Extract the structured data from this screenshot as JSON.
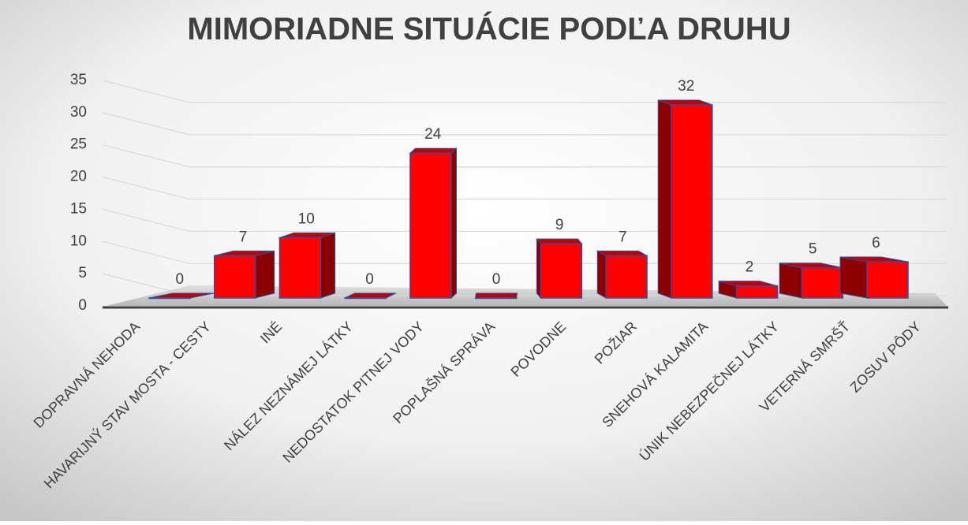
{
  "chart_data": {
    "type": "bar",
    "title": "MIMORIADNE SITUÁCIE PODĽA DRUHU",
    "categories": [
      "DOPRAVNÁ NEHODA",
      "HAVARIJNÝ STAV MOSTA - CESTY",
      "INÉ",
      "NÁLEZ NEZNÁMEJ LÁTKY",
      "NEDOSTATOK PITNEJ VODY",
      "POPLAŠNÁ SPRÁVA",
      "POVODNE",
      "POŽIAR",
      "SNEHOVÁ KALAMITA",
      "ÚNIK NEBEZPEČNEJ LÁTKY",
      "VETERNÁ SMRŠŤ",
      "ZOSUV PÔDY"
    ],
    "values": [
      0,
      7,
      10,
      0,
      24,
      0,
      9,
      7,
      32,
      2,
      5,
      6
    ],
    "color": "#ff0000",
    "ylim": [
      0,
      35
    ],
    "yticks": [
      0,
      5,
      10,
      15,
      20,
      25,
      30,
      35
    ],
    "grid": true
  }
}
